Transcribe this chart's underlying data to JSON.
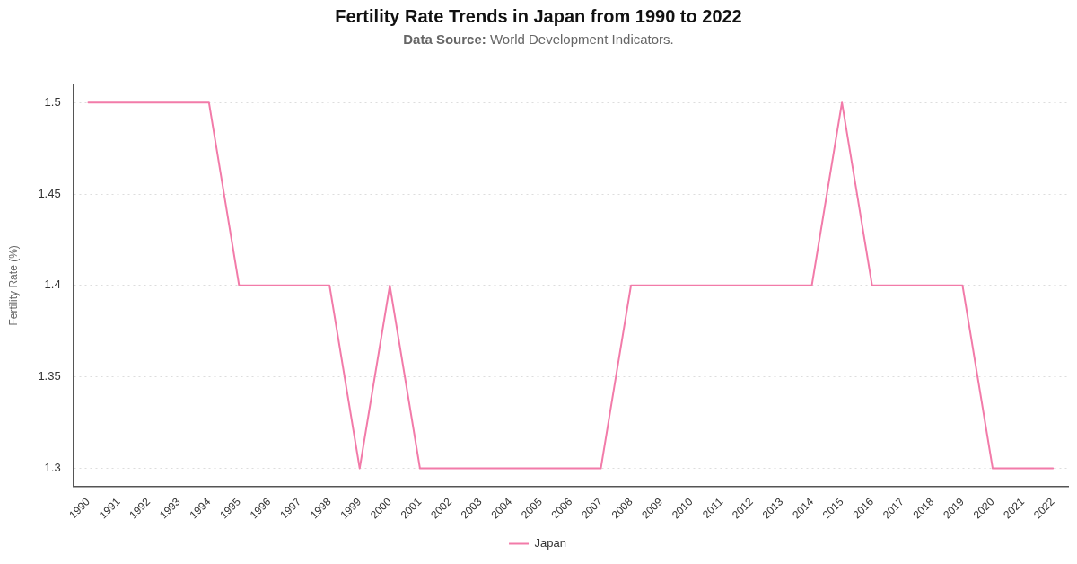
{
  "chart_data": {
    "type": "line",
    "title": "Fertility Rate Trends in Japan from 1990 to 2022",
    "subtitle": "Data Source: World Development Indicators.",
    "ylabel": "Fertility Rate (%)",
    "categories": [
      "1990",
      "1991",
      "1992",
      "1993",
      "1994",
      "1995",
      "1996",
      "1997",
      "1998",
      "1999",
      "2000",
      "2001",
      "2002",
      "2003",
      "2004",
      "2005",
      "2006",
      "2007",
      "2008",
      "2009",
      "2010",
      "2011",
      "2012",
      "2013",
      "2014",
      "2015",
      "2016",
      "2017",
      "2018",
      "2019",
      "2020",
      "2021",
      "2022"
    ],
    "series": [
      {
        "name": "Japan",
        "color": "#f27ba9",
        "values": [
          1.5,
          1.5,
          1.5,
          1.5,
          1.5,
          1.4,
          1.4,
          1.4,
          1.4,
          1.3,
          1.4,
          1.3,
          1.3,
          1.3,
          1.3,
          1.3,
          1.3,
          1.3,
          1.4,
          1.4,
          1.4,
          1.4,
          1.4,
          1.4,
          1.4,
          1.5,
          1.4,
          1.4,
          1.4,
          1.4,
          1.3,
          1.3,
          1.3
        ]
      }
    ],
    "ylim": [
      1.29,
      1.51
    ],
    "yticks": [
      1.3,
      1.35,
      1.4,
      1.45,
      1.5
    ],
    "grid": "y",
    "legend": "bottom",
    "marker": "none",
    "line_style": "solid"
  }
}
